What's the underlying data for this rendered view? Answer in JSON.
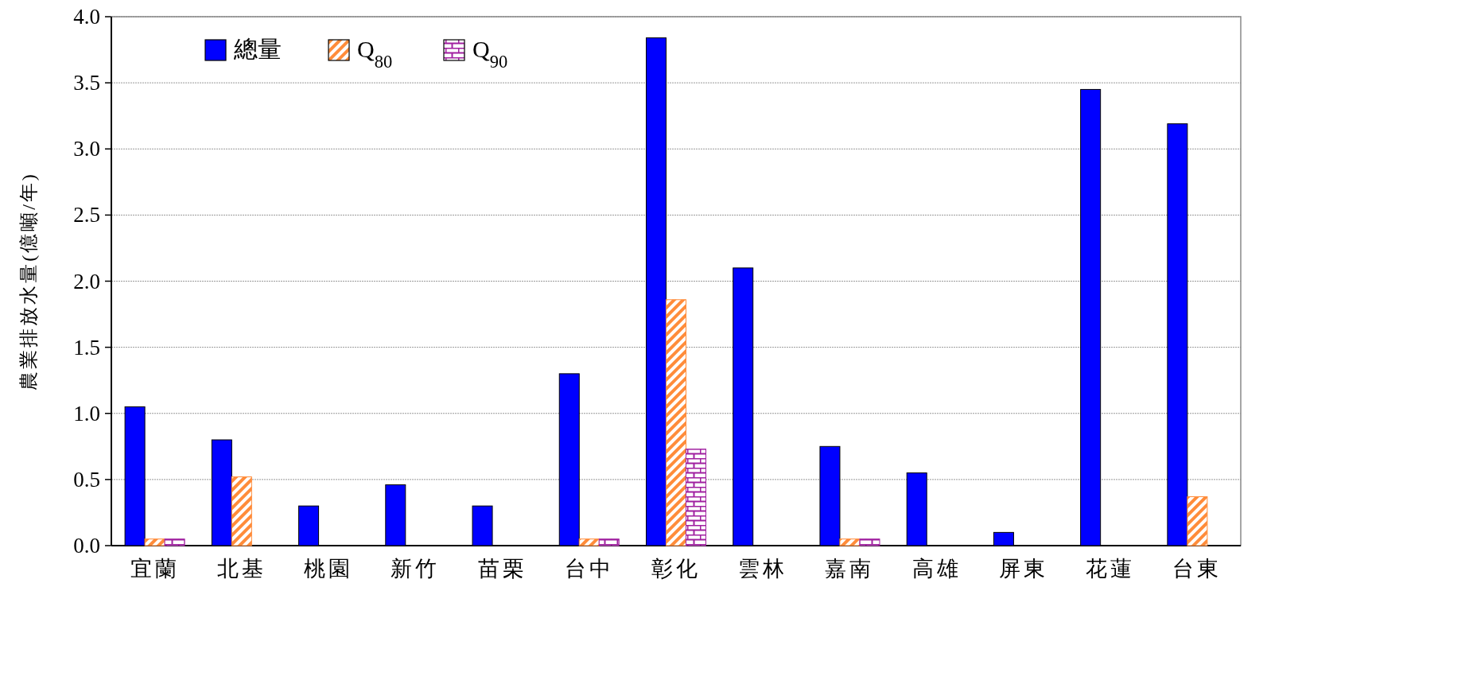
{
  "chart_data": {
    "type": "bar",
    "ylabel": "農業排放水量(億噸/年)",
    "categories": [
      "宜蘭",
      "北基",
      "桃園",
      "新竹",
      "苗栗",
      "台中",
      "彰化",
      "雲林",
      "嘉南",
      "高雄",
      "屏東",
      "花蓮",
      "台東"
    ],
    "series": [
      {
        "name": "總量",
        "color": "#0000ff",
        "values": [
          1.05,
          0.8,
          0.3,
          0.46,
          0.3,
          1.3,
          3.84,
          2.1,
          0.75,
          0.55,
          0.1,
          3.45,
          3.19
        ]
      },
      {
        "name": "Q$_{80}$",
        "color": "#ff8c3a",
        "values": [
          0.05,
          0.52,
          0,
          0,
          0,
          0.05,
          1.86,
          0,
          0.05,
          0,
          0,
          0,
          0.37
        ]
      },
      {
        "name": "Q$_{90}$",
        "color": "#a020a0",
        "values": [
          0.05,
          0,
          0,
          0,
          0,
          0.05,
          0.73,
          0,
          0.05,
          0,
          0,
          0,
          0
        ]
      }
    ],
    "ylim": [
      0,
      4
    ],
    "yticks": [
      {
        "value": 0,
        "label": "0.0"
      },
      {
        "value": 0.5,
        "label": "0.5"
      },
      {
        "value": 1,
        "label": "1.0"
      },
      {
        "value": 1.5,
        "label": "1.5"
      },
      {
        "value": 2,
        "label": "2.0"
      },
      {
        "value": 2.5,
        "label": "2.5"
      },
      {
        "value": 3,
        "label": "3.0"
      },
      {
        "value": 3.5,
        "label": "3.5"
      },
      {
        "value": 4,
        "label": "4.0"
      }
    ],
    "grid": "y",
    "legend": "top left"
  }
}
